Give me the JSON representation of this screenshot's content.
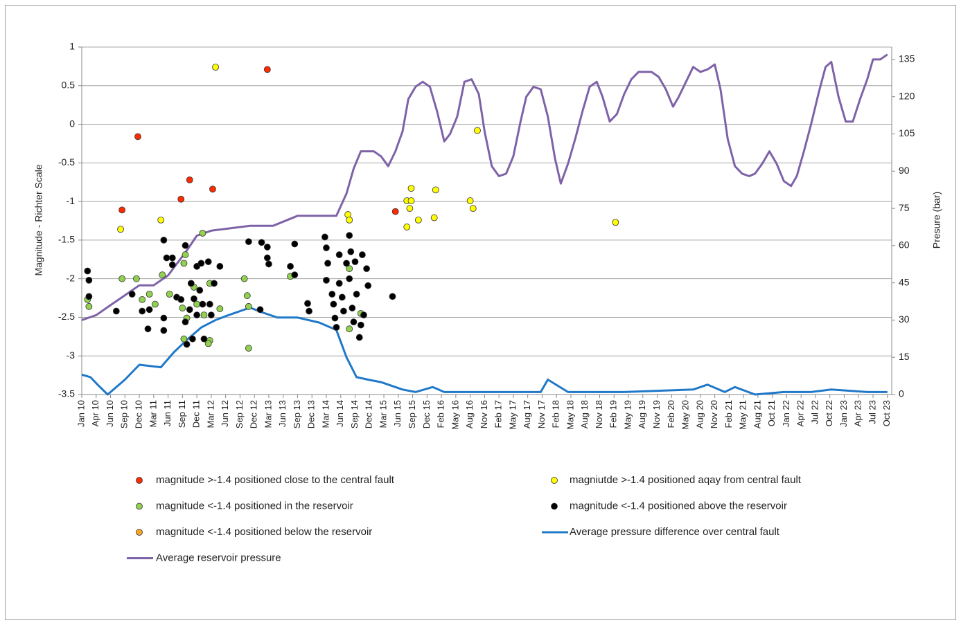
{
  "chart_data": {
    "type": "combo",
    "y_label": "Magnitude - Richter Scale",
    "y2_label": "Presure (bar)",
    "xlim": [
      0,
      56.3
    ],
    "ylim": [
      -3.5,
      1
    ],
    "y2lim": [
      0,
      140
    ],
    "grid": true,
    "yticks": [
      -3.5,
      -3,
      -2.5,
      -2,
      -1.5,
      -1,
      -0.5,
      0,
      0.5,
      1
    ],
    "y2ticks": [
      0,
      15,
      30,
      45,
      60,
      75,
      90,
      105,
      120,
      135
    ],
    "xticks": [
      {
        "value": 0,
        "label": "Jan 10"
      },
      {
        "value": 1,
        "label": "Apr 10"
      },
      {
        "value": 2,
        "label": "Jun 10"
      },
      {
        "value": 3,
        "label": "Sep 10"
      },
      {
        "value": 4,
        "label": "Dec 10"
      },
      {
        "value": 5,
        "label": "Mar 11"
      },
      {
        "value": 6,
        "label": "Jun 11"
      },
      {
        "value": 7,
        "label": "Sep 11"
      },
      {
        "value": 8,
        "label": "Dec 11"
      },
      {
        "value": 9,
        "label": "Mar 12"
      },
      {
        "value": 10,
        "label": "Jun 12"
      },
      {
        "value": 11,
        "label": "Sep 12"
      },
      {
        "value": 12,
        "label": "Dec 12"
      },
      {
        "value": 13,
        "label": "Mar 13"
      },
      {
        "value": 14,
        "label": "Jun 13"
      },
      {
        "value": 15,
        "label": "Sep 13"
      },
      {
        "value": 16,
        "label": "Dec 13"
      },
      {
        "value": 17,
        "label": "Mar 14"
      },
      {
        "value": 18,
        "label": "Jun 14"
      },
      {
        "value": 19,
        "label": "Sep 14"
      },
      {
        "value": 20,
        "label": "Dec 14"
      },
      {
        "value": 21,
        "label": "Mar 15"
      },
      {
        "value": 22,
        "label": "Jun 15"
      },
      {
        "value": 23,
        "label": "Sep 15"
      },
      {
        "value": 24,
        "label": "Dec 15"
      },
      {
        "value": 25,
        "label": "Feb 16"
      },
      {
        "value": 26,
        "label": "May 16"
      },
      {
        "value": 27,
        "label": "Aug 16"
      },
      {
        "value": 28,
        "label": "Nov 16"
      },
      {
        "value": 29,
        "label": "Feb 17"
      },
      {
        "value": 30,
        "label": "May 17"
      },
      {
        "value": 31,
        "label": "Aug 17"
      },
      {
        "value": 32,
        "label": "Nov 17"
      },
      {
        "value": 33,
        "label": "Feb 18"
      },
      {
        "value": 34,
        "label": "May 18"
      },
      {
        "value": 35,
        "label": "Aug 18"
      },
      {
        "value": 36,
        "label": "Nov 18"
      },
      {
        "value": 37,
        "label": "Feb 19"
      },
      {
        "value": 38,
        "label": "May 19"
      },
      {
        "value": 39,
        "label": "Aug 19"
      },
      {
        "value": 40,
        "label": "Nov 19"
      },
      {
        "value": 41,
        "label": "Feb 20"
      },
      {
        "value": 42,
        "label": "May 20"
      },
      {
        "value": 43,
        "label": "Aug 20"
      },
      {
        "value": 44,
        "label": "Nov 20"
      },
      {
        "value": 45,
        "label": "Feb 21"
      },
      {
        "value": 46,
        "label": "May 21"
      },
      {
        "value": 47,
        "label": "Aug 21"
      },
      {
        "value": 48,
        "label": "Oct 21"
      },
      {
        "value": 49,
        "label": "Jan 22"
      },
      {
        "value": 50,
        "label": "Apr 22"
      },
      {
        "value": 51,
        "label": "Jul 22"
      },
      {
        "value": 52,
        "label": "Oct 22"
      },
      {
        "value": 53,
        "label": "Jan 23"
      },
      {
        "value": 54,
        "label": "Apr 23"
      },
      {
        "value": 55,
        "label": "Jul 23"
      },
      {
        "value": 56,
        "label": "Oct 23"
      }
    ],
    "series": [
      {
        "name": "magnitude >-1.4 positioned close to the central fault",
        "type": "scatter",
        "color": "#ff2a00",
        "x": [
          2.8,
          3.9,
          6.9,
          7.5,
          9.1,
          12.9,
          21.8
        ],
        "values": [
          -1.11,
          -0.16,
          -0.97,
          -0.72,
          -0.84,
          0.71,
          -1.13
        ]
      },
      {
        "name": "magniutde >-1.4 positioned aqay from central fault",
        "type": "scatter",
        "color": "#ffff00",
        "x": [
          2.7,
          5.5,
          9.3,
          18.5,
          18.6,
          22.6,
          22.6,
          22.9,
          22.9,
          22.8,
          23.4,
          24.5,
          24.6,
          27.0,
          27.2,
          27.5,
          37.1
        ],
        "values": [
          -1.36,
          -1.24,
          0.74,
          -1.17,
          -1.24,
          -1.33,
          -0.99,
          -0.83,
          -0.99,
          -1.09,
          -1.24,
          -1.21,
          -0.85,
          -0.99,
          -1.09,
          -0.08,
          -1.27
        ]
      },
      {
        "name": "magnitude <-1.4 positioned in the reservoir",
        "type": "scatter",
        "color": "#92d050",
        "x": [
          0.4,
          0.5,
          2.8,
          3.8,
          4.2,
          4.7,
          5.6,
          6.1,
          7.1,
          7.2,
          7.0,
          7.3,
          7.8,
          8.0,
          8.4,
          8.5,
          8.9,
          8.9,
          9.6,
          11.3,
          11.5,
          11.6,
          11.6,
          14.5,
          18.6,
          18.6,
          19.4,
          7.1,
          8.8,
          5.1
        ],
        "values": [
          -2.27,
          -2.36,
          -2.0,
          -2.0,
          -2.27,
          -2.2,
          -1.95,
          -2.2,
          -1.8,
          -1.69,
          -2.38,
          -2.51,
          -2.11,
          -2.33,
          -1.41,
          -2.47,
          -2.06,
          -2.8,
          -2.39,
          -2.0,
          -2.22,
          -2.36,
          -2.9,
          -1.97,
          -1.87,
          -2.65,
          -2.45,
          -2.78,
          -2.84,
          -2.33
        ]
      },
      {
        "name": "magnitude <-1.4 positioned above the reservoir",
        "type": "scatter",
        "color": "#000000",
        "x": [
          0.4,
          0.5,
          0.5,
          2.4,
          3.5,
          4.2,
          4.6,
          4.7,
          5.7,
          5.7,
          5.7,
          5.9,
          6.3,
          6.3,
          6.6,
          6.9,
          7.2,
          7.2,
          7.3,
          7.5,
          7.6,
          7.7,
          7.8,
          8.0,
          8.0,
          8.2,
          8.3,
          8.4,
          8.5,
          8.8,
          8.9,
          9.0,
          9.2,
          9.6,
          11.6,
          12.4,
          12.5,
          12.9,
          13.0,
          12.9,
          14.5,
          14.8,
          14.8,
          15.7,
          15.8,
          16.9,
          17.0,
          17.0,
          17.1,
          17.4,
          17.5,
          17.6,
          17.7,
          17.9,
          17.9,
          18.1,
          18.2,
          18.4,
          18.6,
          18.6,
          18.7,
          18.8,
          18.9,
          19.0,
          19.1,
          19.3,
          19.4,
          19.5,
          19.6,
          19.8,
          19.9,
          21.6
        ],
        "values": [
          -1.9,
          -2.02,
          -2.23,
          -2.42,
          -2.2,
          -2.42,
          -2.65,
          -2.4,
          -1.5,
          -2.51,
          -2.67,
          -1.73,
          -1.82,
          -1.73,
          -2.24,
          -2.27,
          -1.57,
          -2.56,
          -2.85,
          -2.4,
          -2.06,
          -2.78,
          -2.26,
          -1.84,
          -2.47,
          -2.15,
          -1.8,
          -2.33,
          -2.78,
          -1.78,
          -2.33,
          -2.47,
          -2.06,
          -1.84,
          -1.52,
          -2.4,
          -1.53,
          -1.73,
          -1.81,
          -1.59,
          -1.84,
          -1.55,
          -1.95,
          -2.32,
          -2.42,
          -1.46,
          -1.6,
          -2.02,
          -1.8,
          -2.2,
          -2.33,
          -2.51,
          -2.63,
          -1.69,
          -2.06,
          -2.24,
          -2.42,
          -1.8,
          -2.0,
          -1.44,
          -1.65,
          -2.38,
          -2.56,
          -1.78,
          -2.2,
          -2.76,
          -2.6,
          -1.69,
          -2.47,
          -1.87,
          -2.09,
          -2.23
        ]
      },
      {
        "name": "magnitude <-1.4 positioned below the reservoir",
        "type": "scatter",
        "color": "#f5a623",
        "x": [],
        "values": []
      },
      {
        "name": "Average pressure difference over central fault",
        "type": "line",
        "axis": "y2",
        "color": "#1f78c8",
        "x": [
          0,
          0.6,
          1.1,
          1.8,
          3.0,
          4.0,
          5.5,
          6.4,
          7.3,
          8.3,
          9.3,
          10.2,
          11.7,
          12.6,
          13.6,
          15.0,
          16.5,
          17.7,
          18.4,
          19.1,
          19.9,
          20.8,
          22.3,
          23.2,
          24.4,
          25.2,
          28.0,
          31.9,
          32.4,
          33.8,
          37.7,
          42.5,
          43.5,
          44.7,
          45.4,
          46.8,
          48.8,
          50.7,
          52.1,
          54.6,
          56.0
        ],
        "values": [
          8,
          7,
          4,
          0,
          6,
          12,
          11,
          17,
          22,
          27,
          30,
          32,
          35,
          33,
          31,
          31,
          29,
          26,
          15,
          7,
          6,
          5,
          2,
          1,
          3,
          1,
          1,
          1,
          6,
          1,
          1,
          2,
          4,
          1,
          3,
          0,
          1,
          1,
          2,
          1,
          1
        ]
      },
      {
        "name": "Average reservoir pressure",
        "type": "line",
        "axis": "y2",
        "color": "#7e62a8",
        "x": [
          0,
          1,
          2,
          3,
          4,
          5,
          6,
          7.3,
          8,
          9,
          11.7,
          13.3,
          15,
          17.7,
          18.4,
          18.9,
          19.4,
          19.9,
          20.3,
          20.8,
          21.3,
          21.8,
          22.3,
          22.7,
          23.2,
          23.7,
          24.2,
          24.7,
          25.2,
          25.6,
          26.1,
          26.6,
          27.1,
          27.6,
          28.0,
          28.5,
          29.0,
          29.5,
          30.0,
          30.5,
          30.9,
          31.4,
          31.9,
          32.4,
          32.9,
          33.3,
          33.8,
          34.3,
          34.8,
          35.3,
          35.8,
          36.2,
          36.7,
          37.2,
          37.7,
          38.2,
          38.7,
          39.1,
          39.6,
          40.1,
          40.6,
          41.1,
          41.5,
          42.0,
          42.5,
          43.0,
          43.5,
          44.0,
          44.4,
          44.9,
          45.4,
          45.9,
          46.4,
          46.8,
          47.3,
          47.8,
          48.3,
          48.8,
          49.3,
          49.7,
          50.2,
          50.7,
          51.2,
          51.7,
          52.1,
          52.6,
          53.1,
          53.6,
          54.1,
          54.6,
          55.0,
          55.5,
          56.0
        ],
        "values": [
          30,
          32,
          36,
          40,
          44,
          44,
          48,
          58,
          64,
          66,
          68,
          68,
          72,
          72,
          81,
          91,
          98,
          98,
          98,
          96,
          92,
          98,
          106,
          119,
          124,
          126,
          124,
          114,
          102,
          105,
          112,
          126,
          127,
          121,
          106,
          92,
          88,
          89,
          96,
          110,
          120,
          124,
          123,
          112,
          95,
          85,
          93,
          103,
          114,
          124,
          126,
          120,
          110,
          113,
          121,
          127,
          130,
          130,
          130,
          128,
          123,
          116,
          120,
          126,
          132,
          130,
          131,
          133,
          123,
          103,
          92,
          89,
          88,
          89,
          93,
          98,
          93,
          86,
          84,
          88,
          98,
          109,
          121,
          132,
          134,
          120,
          110,
          110,
          119,
          127,
          135,
          135,
          137
        ]
      }
    ]
  }
}
